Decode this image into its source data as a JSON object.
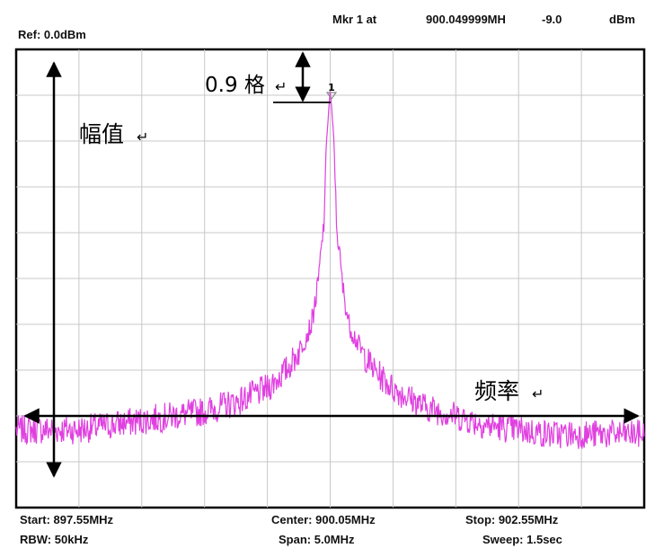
{
  "header": {
    "ref": "Ref: 0.0dBm",
    "marker_label": "Mkr 1 at",
    "marker_freq": "900.049999MH",
    "marker_value": "-9.0",
    "marker_unit": "dBm"
  },
  "footer": {
    "start": "Start: 897.55MHz",
    "center": "Center: 900.05MHz",
    "stop": "Stop: 902.55MHz",
    "rbw": "RBW: 50kHz",
    "span": "Span: 5.0MHz",
    "sweep": "Sweep: 1.5sec"
  },
  "annotations": {
    "amplitude": "幅值",
    "frequency": "频率",
    "division": "0.9 格",
    "marker_number": "1"
  },
  "colors": {
    "trace": "#e040e0",
    "grid": "#c8c8c8",
    "frame": "#000000"
  },
  "chart_data": {
    "type": "line",
    "title": "",
    "xlabel": "",
    "ylabel": "",
    "xlim": [
      897.55,
      902.55
    ],
    "ylim": [
      -100,
      0
    ],
    "x_divisions": 10,
    "y_divisions": 10,
    "grid": true,
    "series": [
      {
        "x": [
          897.55,
          897.8,
          898.05,
          898.3,
          898.55,
          898.8,
          899.05,
          899.3,
          899.55,
          899.7,
          899.8,
          899.9,
          899.95,
          900.0,
          900.02,
          900.05,
          900.08,
          900.1,
          900.15,
          900.2,
          900.3,
          900.4,
          900.55,
          900.8,
          901.05,
          901.3,
          901.55,
          901.8,
          902.05,
          902.3,
          902.55
        ],
        "values": [
          -83,
          -83,
          -83,
          -82,
          -81,
          -80,
          -79,
          -77,
          -74,
          -70,
          -66,
          -60,
          -52,
          -38,
          -20,
          -9,
          -20,
          -38,
          -52,
          -60,
          -66,
          -70,
          -74,
          -78,
          -80,
          -82,
          -83,
          -84,
          -84,
          -84,
          -84
        ]
      }
    ]
  }
}
